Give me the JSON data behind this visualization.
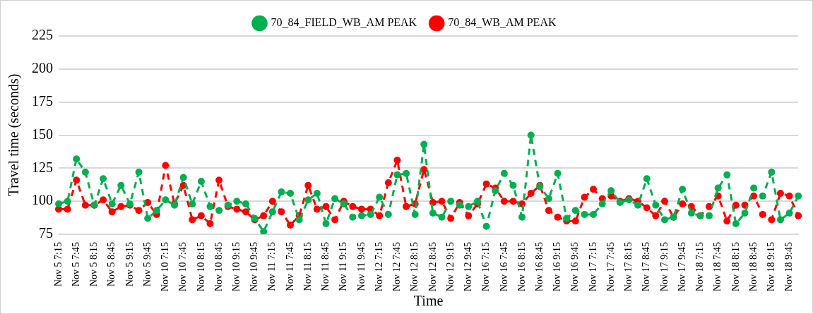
{
  "chart_data": {
    "type": "line",
    "xlabel": "Time",
    "ylabel": "Travel time (seconds)",
    "categories": [
      "Nov 5 7:15",
      null,
      "Nov 5 7:45",
      null,
      "Nov 5 8:15",
      null,
      "Nov 5 8:45",
      null,
      "Nov 5 9:15",
      null,
      "Nov 5 9:45",
      null,
      "Nov 10 7:15",
      null,
      "Nov 10 7:45",
      null,
      "Nov 10 8:15",
      null,
      "Nov 10 8:45",
      null,
      "Nov 10 9:15",
      null,
      "Nov 10 9:45",
      null,
      "Nov 11 7:15",
      null,
      "Nov 11 7:45",
      null,
      "Nov 11 8:15",
      null,
      "Nov 11 8:45",
      null,
      "Nov 11 9:15",
      null,
      "Nov 11 9:45",
      null,
      "Nov 12 7:15",
      null,
      "Nov 12 7:45",
      null,
      "Nov 12 8:15",
      null,
      "Nov 12 8:45",
      null,
      "Nov 12 9:15",
      null,
      "Nov 12 9:45",
      null,
      "Nov 16 7:15",
      null,
      "Nov 16 7:45",
      null,
      "Nov 16 8:15",
      null,
      "Nov 16 8:45",
      null,
      "Nov 16 9:15",
      null,
      "Nov 16 9:45",
      null,
      "Nov 17 7:15",
      null,
      "Nov 17 7:45",
      null,
      "Nov 17 8:15",
      null,
      "Nov 17 8:45",
      null,
      "Nov 17 9:15",
      null,
      "Nov 17 9:45",
      null,
      "Nov 18 7:15",
      null,
      "Nov 18 7:45",
      null,
      "Nov 18 8:15",
      null,
      "Nov 18 8:45",
      null,
      "Nov 18 9:15",
      null,
      "Nov 18 9:45",
      null
    ],
    "series": [
      {
        "name": "70_84_FIELD_WB_AM PEAK",
        "color": "#00b050",
        "values": [
          98,
          100,
          132,
          122,
          97,
          117,
          98,
          112,
          98,
          122,
          87,
          93,
          101,
          97,
          118,
          98,
          115,
          96,
          93,
          97,
          100,
          98,
          87,
          77,
          92,
          107,
          106,
          86,
          101,
          106,
          83,
          102,
          98,
          88,
          89,
          90,
          103,
          90,
          120,
          121,
          90,
          143,
          91,
          88,
          100,
          97,
          96,
          100,
          81,
          108,
          121,
          112,
          88,
          150,
          111,
          102,
          121,
          87,
          93,
          90,
          90,
          98,
          108,
          99,
          101,
          97,
          117,
          97,
          86,
          88,
          109,
          91,
          89,
          89,
          110,
          120,
          83,
          91,
          110,
          104,
          122,
          86,
          91,
          104
        ]
      },
      {
        "name": "70_84_WB_AM PEAK",
        "color": "#ff0000",
        "values": [
          94,
          94,
          116,
          97,
          97,
          101,
          92,
          96,
          97,
          93,
          99,
          90,
          127,
          98,
          112,
          86,
          89,
          83,
          116,
          96,
          94,
          92,
          86,
          89,
          100,
          92,
          82,
          89,
          112,
          94,
          96,
          86,
          100,
          96,
          94,
          94,
          89,
          114,
          131,
          96,
          98,
          124,
          99,
          100,
          87,
          99,
          89,
          98,
          113,
          110,
          100,
          100,
          98,
          106,
          112,
          93,
          88,
          85,
          85,
          103,
          109,
          102,
          104,
          100,
          102,
          100,
          95,
          89,
          100,
          88,
          98,
          96,
          89,
          96,
          104,
          85,
          97,
          97,
          104,
          90,
          86,
          106,
          104,
          89
        ]
      }
    ],
    "ylim": [
      75,
      225
    ],
    "yticks": [
      75,
      100,
      125,
      150,
      175,
      200,
      225
    ],
    "grid": "y",
    "legend": "top",
    "marker": "circle",
    "line_style": "dashed"
  }
}
